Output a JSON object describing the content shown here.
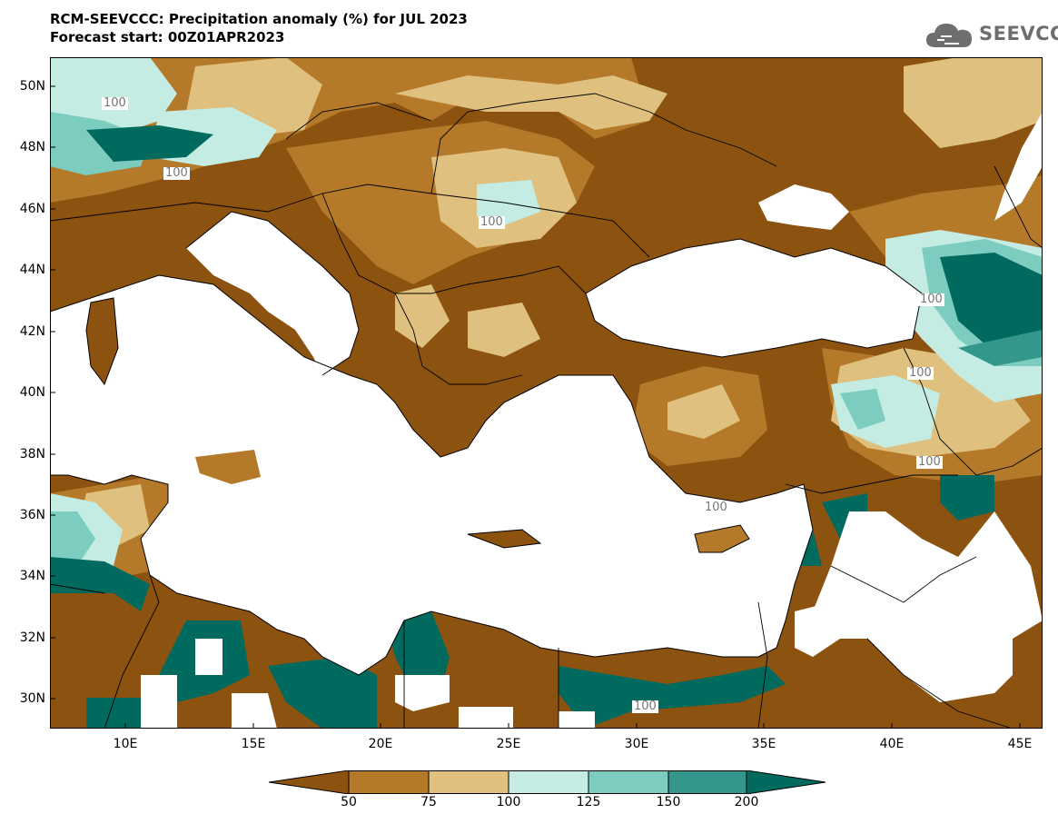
{
  "title": {
    "line1": "RCM-SEEVCCC: Precipitation anomaly (%) for JUL 2023",
    "line2": "Forecast start: 00Z01APR2023"
  },
  "logo": {
    "text": "SEEVCCC",
    "icon": "cloud-icon"
  },
  "axes": {
    "lat_ticks": [
      "50N",
      "48N",
      "46N",
      "44N",
      "42N",
      "40N",
      "38N",
      "36N",
      "34N",
      "32N",
      "30N"
    ],
    "lon_ticks": [
      "10E",
      "15E",
      "20E",
      "25E",
      "30E",
      "35E",
      "40E",
      "45E"
    ]
  },
  "contour_labels": [
    "100",
    "100",
    "100",
    "100",
    "100",
    "100",
    "100",
    "100"
  ],
  "colorbar": {
    "ticks": [
      "50",
      "75",
      "100",
      "125",
      "150",
      "200"
    ],
    "colors": [
      "#8b5210",
      "#b47a2a",
      "#dfc07e",
      "#c4ece3",
      "#7ccdc0",
      "#35968c",
      "#006a5e"
    ]
  },
  "palette": {
    "land_dark": "#8b5210",
    "land_mid": "#b47a2a",
    "land_light": "#dfc07e",
    "wet_pale": "#c4ece3",
    "wet_mid": "#7ccdc0",
    "wet_dark": "#35968c",
    "wet_deep": "#006a5e",
    "sea": "#ffffff"
  }
}
